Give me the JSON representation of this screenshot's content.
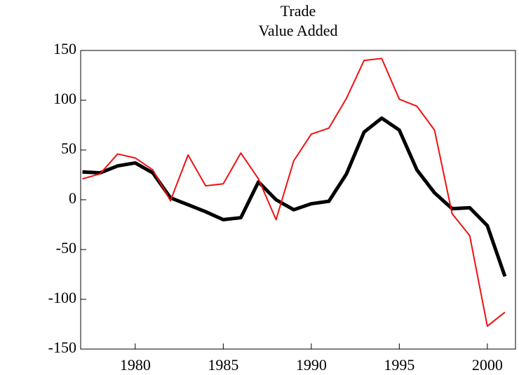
{
  "chart_data": {
    "type": "line",
    "title": "Trade",
    "subtitle": "Value Added",
    "x": [
      1977,
      1978,
      1979,
      1980,
      1981,
      1982,
      1983,
      1984,
      1985,
      1986,
      1987,
      1988,
      1989,
      1990,
      1991,
      1992,
      1993,
      1994,
      1995,
      1996,
      1997,
      1998,
      1999,
      2000,
      2001
    ],
    "series": [
      {
        "color": "#000000",
        "values": [
          28,
          27,
          34,
          37,
          27,
          2,
          -5,
          -12,
          -20,
          -18,
          18,
          0,
          -10,
          -4,
          -1.5,
          26,
          68,
          82,
          70,
          30,
          7,
          -9,
          -8,
          -26,
          -77
        ]
      },
      {
        "color": "#ee1111",
        "values": [
          21,
          26,
          46,
          42,
          30,
          -1,
          45,
          14,
          16,
          47,
          21,
          -20,
          39,
          66,
          72,
          102,
          140,
          142,
          101,
          94,
          70,
          -14,
          -36,
          -127,
          -113
        ]
      }
    ],
    "xlim": [
      1976.9,
      2001.6
    ],
    "xticks": [
      1980,
      1985,
      1990,
      1995,
      2000
    ],
    "ylim": [
      -150,
      150
    ],
    "yticks": [
      -150,
      -100,
      -50,
      0,
      50,
      100,
      150
    ]
  }
}
